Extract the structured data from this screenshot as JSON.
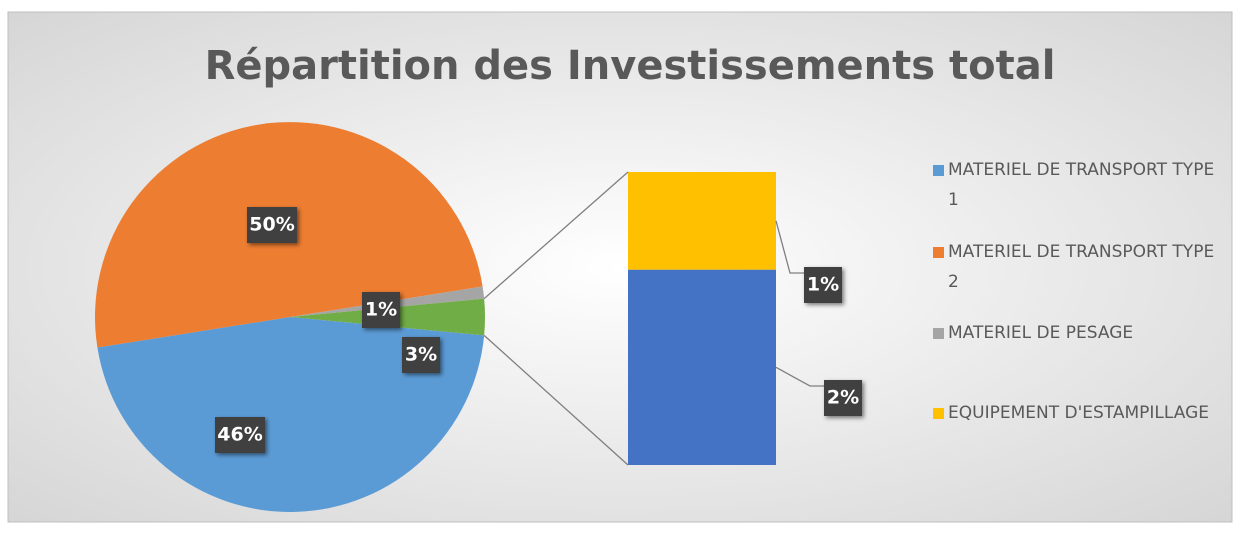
{
  "chart_data": {
    "type": "pie",
    "title": "Répartition des Investissements total",
    "values": [
      46,
      50,
      1,
      3
    ],
    "value_labels": [
      "46%",
      "50%",
      "1%",
      "3%"
    ],
    "colors": [
      "#5b9bd5",
      "#ed7d31",
      "#a5a5a5",
      "#70ad47"
    ],
    "bar": {
      "values": [
        2,
        1
      ],
      "value_labels": [
        "2%",
        "1%"
      ],
      "colors": [
        "#4472c4",
        "#ffc000"
      ]
    },
    "legend": {
      "labels": [
        "MATERIEL DE TRANSPORT TYPE 1",
        "MATERIEL DE TRANSPORT TYPE 2",
        "MATERIEL DE PESAGE",
        "EQUIPEMENT D'ESTAMPILLAGE"
      ],
      "colors": [
        "#5b9bd5",
        "#ed7d31",
        "#a5a5a5",
        "#ffc000"
      ]
    }
  }
}
